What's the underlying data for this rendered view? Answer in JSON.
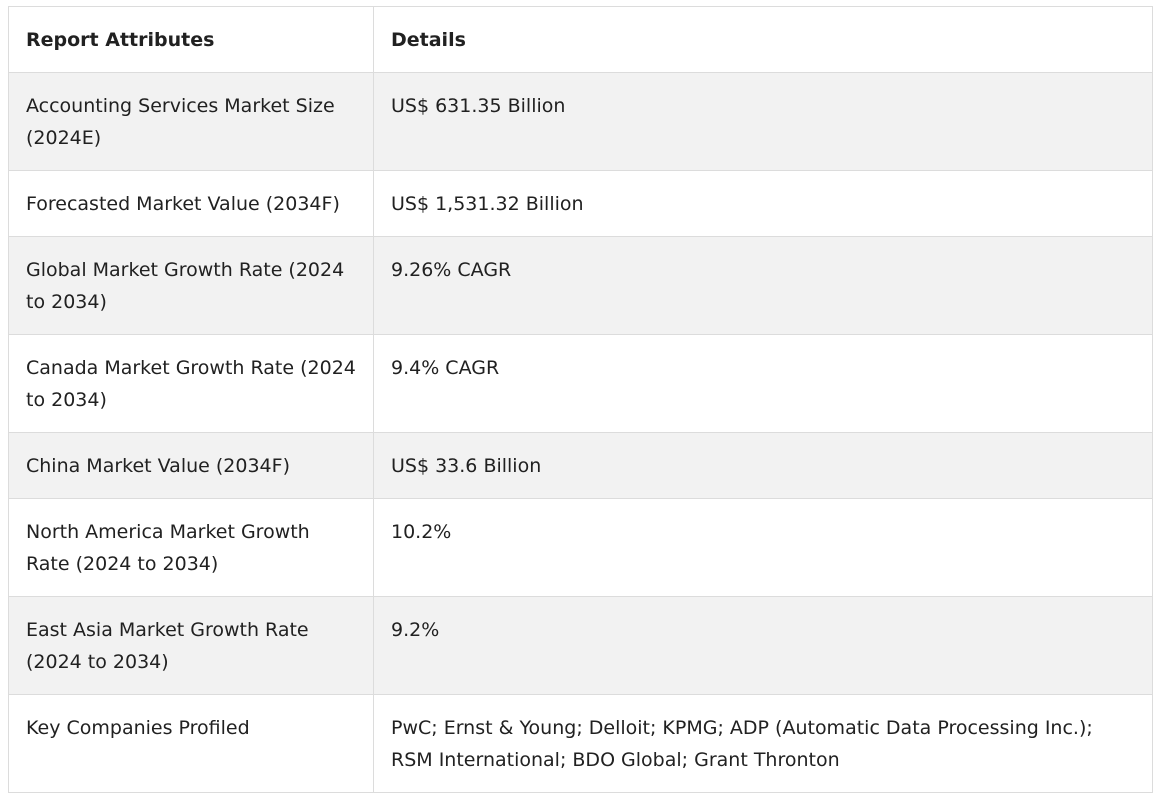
{
  "table": {
    "headers": [
      "Report Attributes",
      "Details"
    ],
    "rows": [
      {
        "attribute": "Accounting Services Market Size (2024E)",
        "detail": "US$ 631.35 Billion"
      },
      {
        "attribute": "Forecasted Market Value (2034F)",
        "detail": "US$ 1,531.32 Billion"
      },
      {
        "attribute": "Global Market Growth Rate (2024 to 2034)",
        "detail": "9.26% CAGR"
      },
      {
        "attribute": "Canada Market Growth Rate (2024 to 2034)",
        "detail": "9.4% CAGR"
      },
      {
        "attribute": "China Market Value (2034F)",
        "detail": "US$ 33.6 Billion"
      },
      {
        "attribute": "North America Market Growth Rate (2024 to 2034)",
        "detail": "10.2%"
      },
      {
        "attribute": "East Asia Market Growth Rate (2024 to 2034)",
        "detail": "9.2%"
      },
      {
        "attribute": "Key Companies Profiled",
        "detail": "PwC; Ernst & Young; Delloit; KPMG; ADP (Automatic Data Processing Inc.); RSM International; BDO Global; Grant Thronton"
      }
    ]
  }
}
